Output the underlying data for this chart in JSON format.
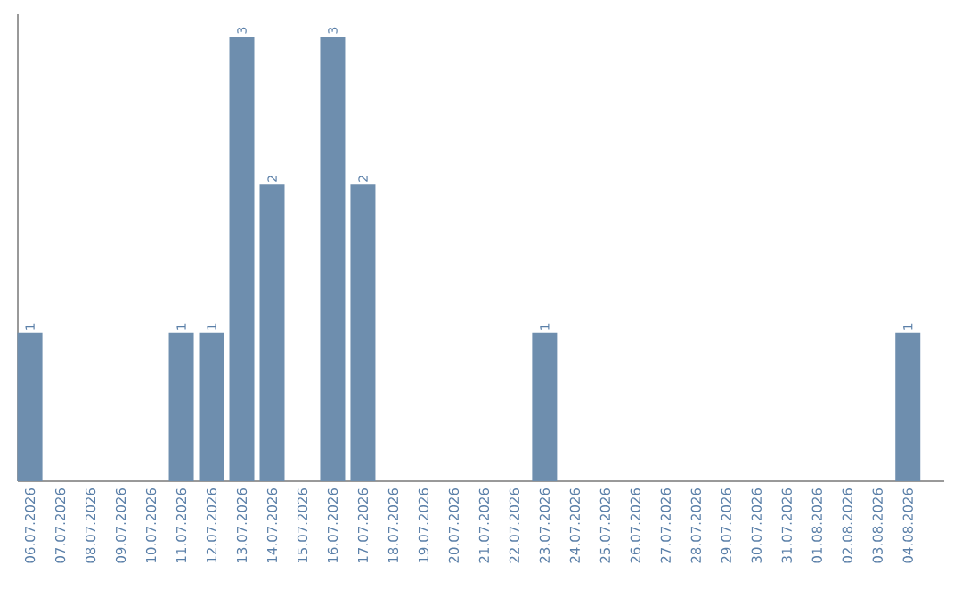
{
  "chart_data": {
    "type": "bar",
    "categories": [
      "06.07.2026",
      "07.07.2026",
      "08.07.2026",
      "09.07.2026",
      "10.07.2026",
      "11.07.2026",
      "12.07.2026",
      "13.07.2026",
      "14.07.2026",
      "15.07.2026",
      "16.07.2026",
      "17.07.2026",
      "18.07.2026",
      "19.07.2026",
      "20.07.2026",
      "21.07.2026",
      "22.07.2026",
      "23.07.2026",
      "24.07.2026",
      "25.07.2026",
      "26.07.2026",
      "27.07.2026",
      "28.07.2026",
      "29.07.2026",
      "30.07.2026",
      "31.07.2026",
      "01.08.2026",
      "02.08.2026",
      "03.08.2026",
      "04.08.2026"
    ],
    "values": [
      1,
      0,
      0,
      0,
      0,
      1,
      1,
      3,
      2,
      0,
      3,
      2,
      0,
      0,
      0,
      0,
      0,
      1,
      0,
      0,
      0,
      0,
      0,
      0,
      0,
      0,
      0,
      0,
      0,
      1
    ],
    "value_labels": [
      "1",
      null,
      null,
      null,
      null,
      "1",
      "1",
      "3",
      "2",
      null,
      "3",
      "2",
      null,
      null,
      null,
      null,
      null,
      "1",
      null,
      null,
      null,
      null,
      null,
      null,
      null,
      null,
      null,
      null,
      null,
      "1"
    ],
    "color": "#6e8eae"
  }
}
